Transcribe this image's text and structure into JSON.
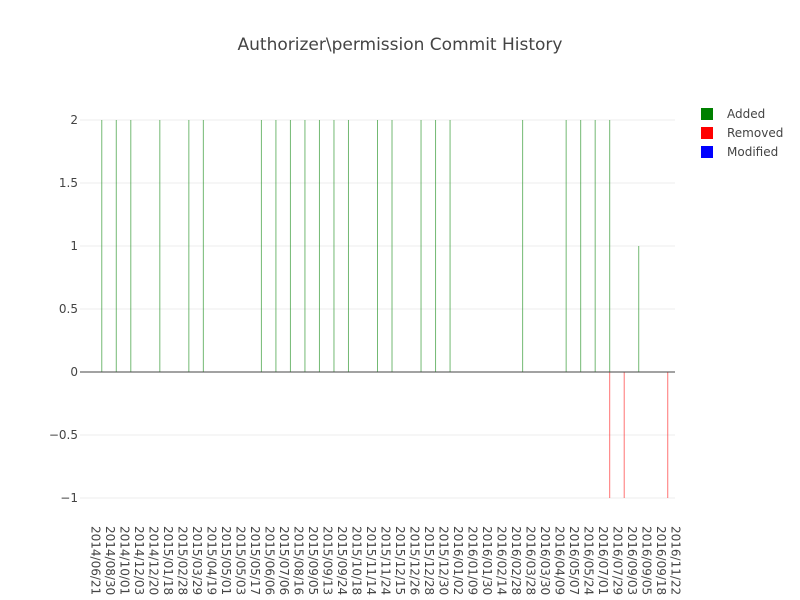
{
  "chart_data": {
    "type": "bar",
    "title": "Authorizer\\permission Commit History",
    "xlabel": "",
    "ylabel": "",
    "ylim": [
      -1,
      2
    ],
    "y_ticks": [
      2,
      1.5,
      1,
      0.5,
      0,
      -0.5,
      -1
    ],
    "y_tick_labels": [
      "2",
      "1.5",
      "1",
      "0.5",
      "0",
      "−0.5",
      "−1"
    ],
    "x_tick_labels": [
      "2014/06/21",
      "2014/08/30",
      "2014/10/01",
      "2014/12/03",
      "2014/12/20",
      "2015/01/18",
      "2015/02/28",
      "2015/03/29",
      "2015/04/19",
      "2015/05/01",
      "2015/05/03",
      "2015/05/17",
      "2015/06/06",
      "2015/07/06",
      "2015/08/16",
      "2015/09/05",
      "2015/09/13",
      "2015/09/24",
      "2015/10/18",
      "2015/11/14",
      "2015/11/24",
      "2015/12/15",
      "2015/12/26",
      "2015/12/28",
      "2015/12/30",
      "2016/01/02",
      "2016/01/09",
      "2016/01/30",
      "2016/02/14",
      "2016/02/28",
      "2016/03/28",
      "2016/03/30",
      "2016/04/09",
      "2016/05/07",
      "2016/05/24",
      "2016/07/01",
      "2016/07/29",
      "2016/09/03",
      "2016/09/05",
      "2016/09/18",
      "2016/11/22"
    ],
    "grid": true,
    "legend_position": "top-right",
    "series": [
      {
        "name": "Added",
        "color": "#008000",
        "categories": [
          "2014/08/30",
          "2014/10/01",
          "2014/12/03",
          "2015/01/18",
          "2015/03/29",
          "2015/04/19",
          "2015/06/06",
          "2015/07/06",
          "2015/08/16",
          "2015/09/05",
          "2015/09/13",
          "2015/09/24",
          "2015/10/18",
          "2015/11/24",
          "2015/12/15",
          "2015/12/28",
          "2015/12/30",
          "2016/01/02",
          "2016/03/28",
          "2016/05/07",
          "2016/05/24",
          "2016/07/01",
          "2016/07/29",
          "2016/09/05"
        ],
        "values": [
          2,
          2,
          2,
          2,
          2,
          2,
          2,
          2,
          2,
          2,
          2,
          2,
          2,
          2,
          2,
          2,
          2,
          2,
          2,
          2,
          2,
          2,
          2,
          1
        ]
      },
      {
        "name": "Removed",
        "color": "#ff0000",
        "categories": [
          "2016/07/29",
          "2016/09/03",
          "2016/11/22"
        ],
        "values": [
          -1,
          -1,
          -1
        ]
      },
      {
        "name": "Modified",
        "color": "#0000ff",
        "categories": [],
        "values": []
      }
    ]
  }
}
